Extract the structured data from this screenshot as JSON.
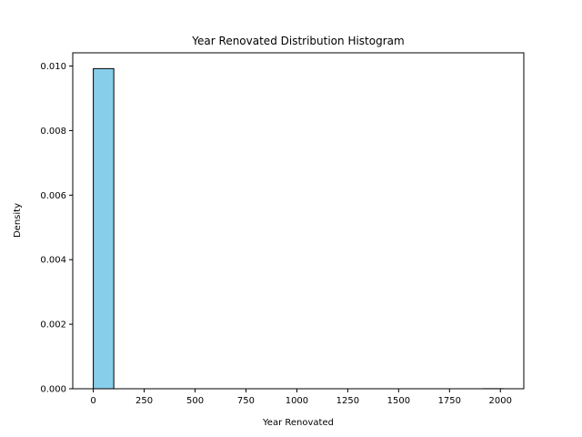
{
  "chart_data": {
    "type": "bar",
    "title": "Year Renovated Distribution Histogram",
    "xlabel": "Year Renovated",
    "ylabel": "Density",
    "xlim": [
      -101,
      2115
    ],
    "ylim": [
      0,
      0.01041
    ],
    "xticks": [
      0,
      250,
      500,
      750,
      1000,
      1250,
      1500,
      1750,
      2000
    ],
    "xtick_labels": [
      "0",
      "250",
      "500",
      "750",
      "1000",
      "1250",
      "1500",
      "1750",
      "2000"
    ],
    "yticks": [
      0.0,
      0.002,
      0.004,
      0.006,
      0.008,
      0.01
    ],
    "ytick_labels": [
      "0.000",
      "0.002",
      "0.004",
      "0.006",
      "0.008",
      "0.010"
    ],
    "bins": [
      {
        "x0": 0,
        "x1": 100.75,
        "density": 0.00992
      },
      {
        "x0": 100.75,
        "x1": 201.5,
        "density": 0
      },
      {
        "x0": 201.5,
        "x1": 302.25,
        "density": 0
      },
      {
        "x0": 302.25,
        "x1": 403,
        "density": 0
      },
      {
        "x0": 403,
        "x1": 503.75,
        "density": 0
      },
      {
        "x0": 503.75,
        "x1": 604.5,
        "density": 0
      },
      {
        "x0": 604.5,
        "x1": 705.25,
        "density": 0
      },
      {
        "x0": 705.25,
        "x1": 806,
        "density": 0
      },
      {
        "x0": 806,
        "x1": 906.75,
        "density": 0
      },
      {
        "x0": 906.75,
        "x1": 1007.5,
        "density": 0
      },
      {
        "x0": 1007.5,
        "x1": 1108.25,
        "density": 0
      },
      {
        "x0": 1108.25,
        "x1": 1209,
        "density": 0
      },
      {
        "x0": 1209,
        "x1": 1309.75,
        "density": 0
      },
      {
        "x0": 1309.75,
        "x1": 1410.5,
        "density": 0
      },
      {
        "x0": 1410.5,
        "x1": 1511.25,
        "density": 0
      },
      {
        "x0": 1511.25,
        "x1": 1612,
        "density": 0
      },
      {
        "x0": 1612,
        "x1": 1712.75,
        "density": 0
      },
      {
        "x0": 1712.75,
        "x1": 1813.5,
        "density": 0
      },
      {
        "x0": 1813.5,
        "x1": 1914.25,
        "density": 0
      },
      {
        "x0": 1914.25,
        "x1": 2015,
        "density": 3.3e-06
      }
    ],
    "grid": false,
    "colors": {
      "bar_fill": "#87ceeb",
      "bar_edge": "#000000",
      "axes": "#000000",
      "text": "#000000"
    }
  }
}
